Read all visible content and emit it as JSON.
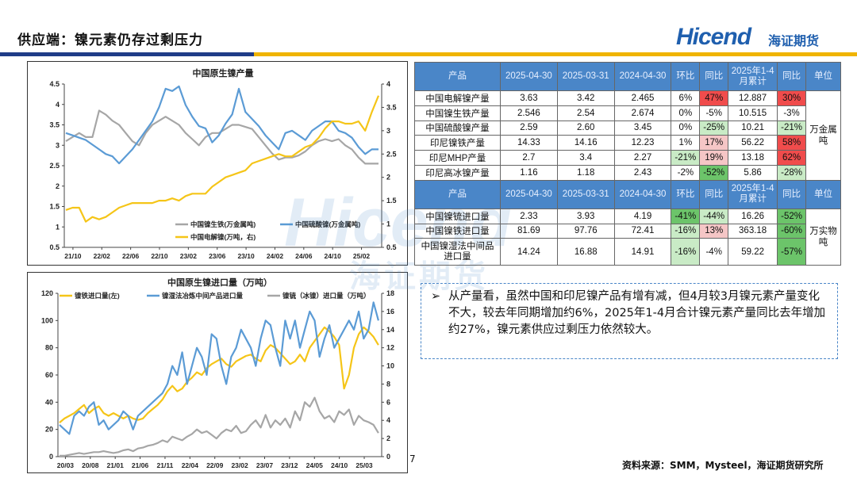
{
  "page_title": "供应端：镍元素仍存过剩压力",
  "logo": {
    "brand": "Hicend",
    "cn": "海证期货"
  },
  "colors": {
    "navy": "#1f3c88",
    "gold": "#f0b400",
    "grey": "#a6a6a6",
    "blue": "#5b9bd5",
    "yellow": "#f5c518"
  },
  "table": {
    "header1": [
      "产品",
      "2025-04-30",
      "2025-03-31",
      "2024-04-30",
      "环比",
      "同比",
      "2025年1-4月累计",
      "同比",
      "单位"
    ],
    "group1_unit": "万金属吨",
    "group1": [
      {
        "name": "中国电解镍产量",
        "v1": "3.63",
        "v2": "3.42",
        "v3": "2.465",
        "mom": "6%",
        "yoy": "47%",
        "cum": "12.887",
        "cumyoy": "30%",
        "mom_c": "",
        "yoy_c": "red",
        "cumyoy_c": "red"
      },
      {
        "name": "中国镍生铁产量",
        "v1": "2.546",
        "v2": "2.54",
        "v3": "2.674",
        "mom": "0%",
        "yoy": "-5%",
        "cum": "10.515",
        "cumyoy": "-3%",
        "mom_c": "",
        "yoy_c": "",
        "cumyoy_c": ""
      },
      {
        "name": "中国硫酸镍产量",
        "v1": "2.59",
        "v2": "2.60",
        "v3": "3.45",
        "mom": "0%",
        "yoy": "-25%",
        "cum": "10.21",
        "cumyoy": "-21%",
        "mom_c": "",
        "yoy_c": "lgreen",
        "cumyoy_c": "lgreen"
      },
      {
        "name": "印尼镍铁产量",
        "v1": "14.33",
        "v2": "14.16",
        "v3": "12.23",
        "mom": "1%",
        "yoy": "17%",
        "cum": "56.22",
        "cumyoy": "58%",
        "mom_c": "",
        "yoy_c": "pink",
        "cumyoy_c": "red"
      },
      {
        "name": "印尼MHP产量",
        "v1": "2.7",
        "v2": "3.4",
        "v3": "2.27",
        "mom": "-21%",
        "yoy": "19%",
        "cum": "13.18",
        "cumyoy": "62%",
        "mom_c": "lgreen",
        "yoy_c": "pink",
        "cumyoy_c": "red"
      },
      {
        "name": "印尼高冰镍产量",
        "v1": "1.16",
        "v2": "1.18",
        "v3": "2.43",
        "mom": "-2%",
        "yoy": "-52%",
        "cum": "5.86",
        "cumyoy": "-28%",
        "mom_c": "",
        "yoy_c": "green",
        "cumyoy_c": "lgreen"
      }
    ],
    "header2": [
      "产品",
      "2025-04-30",
      "2025-03-31",
      "2024-04-30",
      "环比",
      "同比",
      "2025年1-4月累计",
      "同比",
      "单位"
    ],
    "group2_unit": "万实物吨",
    "group2": [
      {
        "name": "中国镍锍进口量",
        "v1": "2.33",
        "v2": "3.93",
        "v3": "4.19",
        "mom": "-41%",
        "yoy": "-44%",
        "cum": "16.26",
        "cumyoy": "-52%",
        "mom_c": "green",
        "yoy_c": "lgreen",
        "cumyoy_c": "green"
      },
      {
        "name": "中国镍铁进口量",
        "v1": "81.69",
        "v2": "97.76",
        "v3": "72.41",
        "mom": "-16%",
        "yoy": "13%",
        "cum": "363.18",
        "cumyoy": "-60%",
        "mom_c": "lgreen",
        "yoy_c": "pink",
        "cumyoy_c": "green"
      },
      {
        "name": "中国镍湿法中间品进口量",
        "v1": "14.24",
        "v2": "16.88",
        "v3": "14.91",
        "mom": "-16%",
        "yoy": "-4%",
        "cum": "59.22",
        "cumyoy": "-57%",
        "mom_c": "lgreen",
        "yoy_c": "",
        "cumyoy_c": "green"
      }
    ]
  },
  "note": "从产量看，虽然中国和印尼镍产品有增有减，但4月较3月镍元素产量变化不大，较去年同期增加约6%，2025年1-4月合计镍元素产量同比去年增加约27%，镍元素供应过剩压力依然较大。",
  "note_arrow": "➢",
  "page_number": "7",
  "source": "资料来源：SMM，Mysteel，海证期货研究所",
  "watermark": {
    "brand": "Hicend",
    "cn": "海证期货"
  },
  "chart_data": [
    {
      "type": "line",
      "title": "中国原生镍产量",
      "x_ticks": [
        "21/10",
        "22/02",
        "22/06",
        "22/10",
        "23/02",
        "23/06",
        "23/10",
        "24/02",
        "24/06",
        "24/10",
        "25/02"
      ],
      "ylim_left": [
        0.5,
        4.5
      ],
      "yticks_left": [
        "0.5",
        "1",
        "1.5",
        "2",
        "2.5",
        "3",
        "3.5",
        "4",
        "4.5"
      ],
      "ylim_right": [
        0.5,
        4
      ],
      "yticks_right": [
        "0.5",
        "1",
        "1.5",
        "2",
        "2.5",
        "3",
        "3.5",
        "4"
      ],
      "series": [
        {
          "name": "中国镍生铁(万金属吨)",
          "axis": "left",
          "color": "#a6a6a6",
          "values": [
            3.1,
            3.2,
            3.3,
            3.2,
            3.2,
            3.85,
            3.75,
            3.6,
            3.5,
            3.3,
            3.1,
            3.0,
            3.3,
            3.5,
            3.6,
            3.7,
            3.6,
            3.5,
            3.3,
            3.15,
            3.0,
            3.2,
            3.3,
            3.3,
            3.4,
            3.5,
            3.5,
            3.45,
            3.4,
            3.2,
            3.0,
            2.8,
            2.65,
            2.7,
            2.7,
            2.75,
            2.85,
            3.0,
            3.1,
            3.15,
            3.1,
            3.15,
            3.0,
            2.9,
            2.7,
            2.55,
            2.55,
            2.55
          ]
        },
        {
          "name": "中国硫酸镍(万金属吨)",
          "axis": "right",
          "color": "#5b9bd5",
          "values": [
            2.95,
            2.9,
            2.85,
            2.8,
            2.7,
            2.6,
            2.5,
            2.45,
            2.3,
            2.45,
            2.6,
            2.8,
            3.0,
            3.2,
            3.5,
            3.9,
            3.85,
            3.95,
            3.55,
            3.3,
            3.1,
            3.05,
            2.75,
            2.9,
            3.15,
            3.35,
            3.9,
            3.4,
            3.25,
            3.1,
            2.9,
            2.75,
            2.6,
            2.95,
            3.0,
            2.9,
            2.8,
            3.0,
            3.1,
            3.2,
            3.2,
            3.0,
            2.95,
            2.85,
            2.65,
            2.5,
            2.6,
            2.6
          ]
        },
        {
          "name": "中国电解镍(万吨，右)",
          "axis": "right",
          "color": "#f5c518",
          "values": [
            1.3,
            1.35,
            1.35,
            1.05,
            1.15,
            1.1,
            1.15,
            1.25,
            1.35,
            1.4,
            1.45,
            1.45,
            1.45,
            1.45,
            1.5,
            1.5,
            1.55,
            1.5,
            1.6,
            1.65,
            1.65,
            1.65,
            1.8,
            1.9,
            2.0,
            2.05,
            2.1,
            2.15,
            2.3,
            2.35,
            2.4,
            2.45,
            2.5,
            2.45,
            2.45,
            2.55,
            2.65,
            2.7,
            2.85,
            3.05,
            3.2,
            3.2,
            3.15,
            3.15,
            3.2,
            3.0,
            3.4,
            3.75
          ]
        }
      ]
    },
    {
      "type": "line",
      "title": "中国原生镍进口量（万吨）",
      "x_ticks": [
        "20/03",
        "20/08",
        "21/01",
        "21/06",
        "21/11",
        "22/04",
        "22/09",
        "23/02",
        "23/07",
        "23/12",
        "24/05",
        "24/10",
        "25/03"
      ],
      "ylim_left": [
        0,
        120
      ],
      "yticks_left": [
        "0",
        "20",
        "40",
        "60",
        "80",
        "100",
        "120"
      ],
      "ylim_right": [
        0,
        18
      ],
      "yticks_right": [
        "0",
        "2",
        "4",
        "6",
        "8",
        "10",
        "12",
        "14",
        "16",
        "18"
      ],
      "series": [
        {
          "name": "镍铁进口量(左)",
          "axis": "left",
          "color": "#f5c518",
          "values": [
            25,
            28,
            30,
            32,
            35,
            38,
            32,
            35,
            37,
            32,
            30,
            32,
            30,
            28,
            30,
            28,
            27,
            28,
            32,
            35,
            38,
            42,
            48,
            52,
            48,
            50,
            55,
            58,
            62,
            60,
            65,
            68,
            70,
            72,
            68,
            66,
            70,
            72,
            74,
            75,
            72,
            70,
            78,
            82,
            80,
            76,
            72,
            68,
            70,
            75,
            70,
            80,
            85,
            90,
            95,
            92,
            88,
            82,
            50,
            60,
            80,
            90,
            95,
            92,
            88,
            82
          ]
        },
        {
          "name": "镍湿法冶炼中间产品进口量",
          "axis": "right",
          "color": "#5b9bd5",
          "values": [
            3.5,
            3.0,
            2.5,
            4.5,
            5.0,
            4.5,
            5.5,
            6.0,
            3.5,
            4.0,
            3.0,
            3.5,
            4.0,
            5.0,
            4.5,
            3.0,
            4.5,
            5.0,
            5.5,
            6.0,
            6.5,
            7.0,
            8.0,
            10.0,
            9.0,
            11.5,
            8.0,
            10.0,
            12.0,
            11.0,
            9.0,
            13.5,
            13.0,
            10.0,
            8.0,
            11.0,
            12.0,
            14.0,
            13.0,
            12.0,
            10.0,
            13.0,
            15.0,
            14.5,
            12.0,
            10.0,
            15.0,
            13.0,
            15.0,
            12.0,
            14.0,
            16.0,
            15.0,
            11.0,
            13.0,
            14.5,
            12.0,
            13.0,
            14.0,
            15.0,
            14.0,
            16.0,
            13.0,
            14.0,
            17.0,
            15.0
          ]
        },
        {
          "name": "镍锍（冰镍）进口量（万吨）",
          "axis": "right",
          "color": "#a6a6a6",
          "values": [
            0.1,
            0.1,
            0.2,
            0.3,
            0.4,
            0.3,
            0.4,
            0.5,
            0.5,
            0.6,
            0.5,
            0.4,
            0.5,
            0.7,
            0.8,
            0.6,
            0.9,
            1.0,
            1.2,
            1.3,
            1.5,
            1.8,
            1.6,
            2.2,
            2.0,
            1.8,
            2.2,
            2.5,
            3.0,
            2.6,
            2.8,
            2.4,
            2.0,
            2.6,
            3.0,
            2.8,
            3.4,
            2.6,
            2.8,
            3.5,
            4.0,
            3.2,
            4.6,
            3.2,
            4.0,
            3.5,
            4.2,
            3.2,
            5.0,
            4.0,
            6.0,
            5.5,
            6.5,
            5.0,
            4.2,
            4.5,
            3.8,
            5.0,
            4.6,
            5.2,
            3.5,
            4.5,
            4.0,
            3.8,
            3.5,
            2.6
          ]
        }
      ]
    }
  ]
}
